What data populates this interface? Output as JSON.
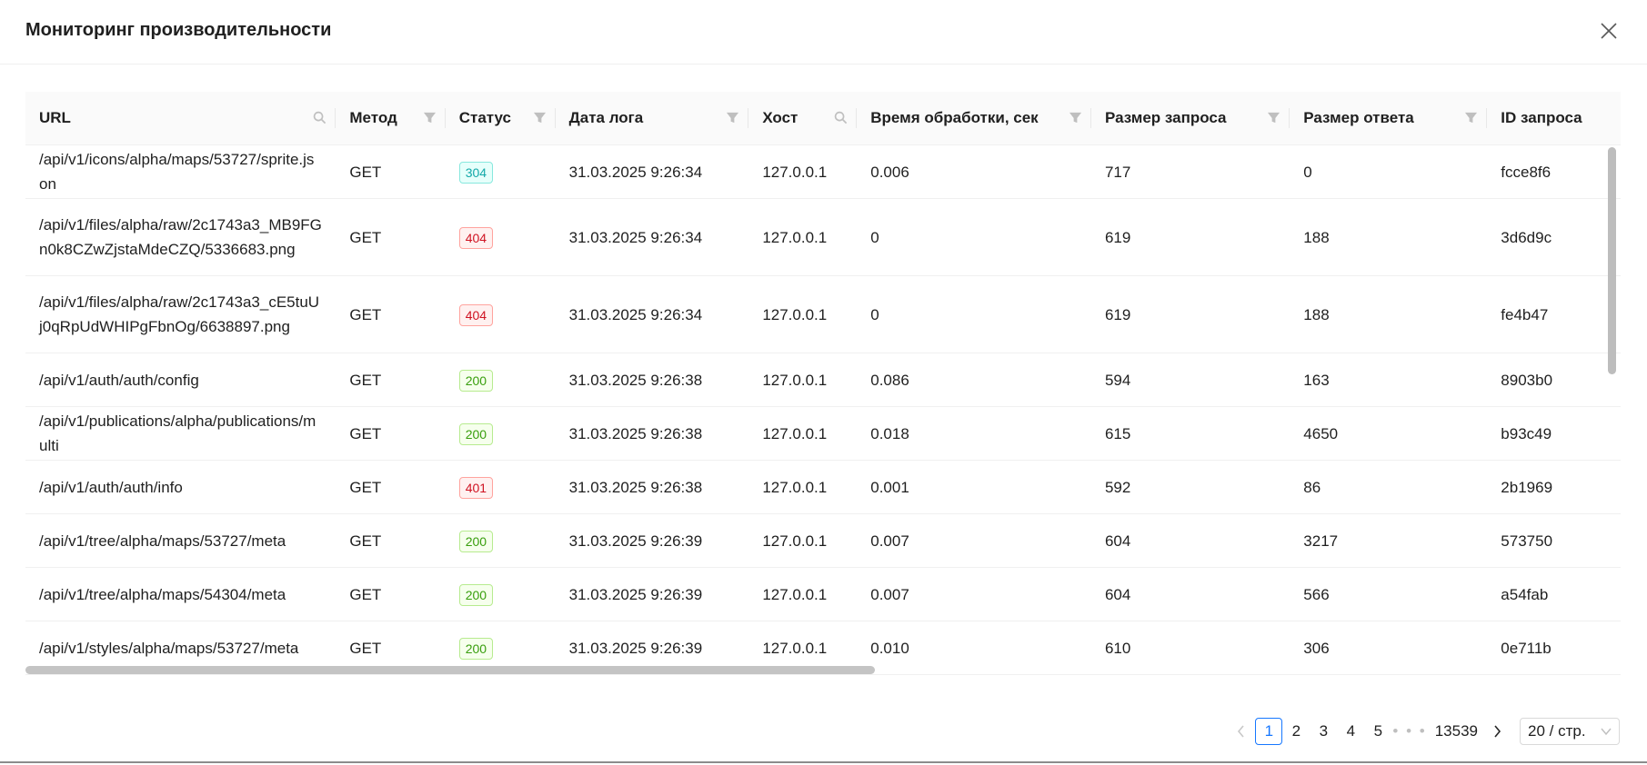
{
  "modal": {
    "title": "Мониторинг производительности"
  },
  "table": {
    "columns": [
      {
        "label": "URL",
        "icon": "search-icon"
      },
      {
        "label": "Метод",
        "icon": "filter-icon"
      },
      {
        "label": "Статус",
        "icon": "filter-icon"
      },
      {
        "label": "Дата лога",
        "icon": "filter-icon"
      },
      {
        "label": "Хост",
        "icon": "search-icon"
      },
      {
        "label": "Время обработки, сек",
        "icon": "filter-icon"
      },
      {
        "label": "Размер запроса",
        "icon": "filter-icon"
      },
      {
        "label": "Размер ответа",
        "icon": "filter-icon"
      },
      {
        "label": "ID запроса",
        "icon": ""
      }
    ],
    "rows": [
      {
        "url": "/api/v1/icons/alpha/maps/53727/sprite.json",
        "method": "GET",
        "status": "304",
        "date": "31.03.2025 9:26:34",
        "host": "127.0.0.1",
        "time": "0.006",
        "req_size": "717",
        "resp_size": "0",
        "id": "fcce8f6"
      },
      {
        "url": "/api/v1/files/alpha/raw/2c1743a3_MB9FGn0k8CZwZjstaMdeCZQ/5336683.png",
        "method": "GET",
        "status": "404",
        "date": "31.03.2025 9:26:34",
        "host": "127.0.0.1",
        "time": "0",
        "req_size": "619",
        "resp_size": "188",
        "id": "3d6d9c"
      },
      {
        "url": "/api/v1/files/alpha/raw/2c1743a3_cE5tuUj0qRpUdWHIPgFbnOg/6638897.png",
        "method": "GET",
        "status": "404",
        "date": "31.03.2025 9:26:34",
        "host": "127.0.0.1",
        "time": "0",
        "req_size": "619",
        "resp_size": "188",
        "id": "fe4b47"
      },
      {
        "url": "/api/v1/auth/auth/config",
        "method": "GET",
        "status": "200",
        "date": "31.03.2025 9:26:38",
        "host": "127.0.0.1",
        "time": "0.086",
        "req_size": "594",
        "resp_size": "163",
        "id": "8903b0"
      },
      {
        "url": "/api/v1/publications/alpha/publications/multi",
        "method": "GET",
        "status": "200",
        "date": "31.03.2025 9:26:38",
        "host": "127.0.0.1",
        "time": "0.018",
        "req_size": "615",
        "resp_size": "4650",
        "id": "b93c49"
      },
      {
        "url": "/api/v1/auth/auth/info",
        "method": "GET",
        "status": "401",
        "date": "31.03.2025 9:26:38",
        "host": "127.0.0.1",
        "time": "0.001",
        "req_size": "592",
        "resp_size": "86",
        "id": "2b1969"
      },
      {
        "url": "/api/v1/tree/alpha/maps/53727/meta",
        "method": "GET",
        "status": "200",
        "date": "31.03.2025 9:26:39",
        "host": "127.0.0.1",
        "time": "0.007",
        "req_size": "604",
        "resp_size": "3217",
        "id": "573750"
      },
      {
        "url": "/api/v1/tree/alpha/maps/54304/meta",
        "method": "GET",
        "status": "200",
        "date": "31.03.2025 9:26:39",
        "host": "127.0.0.1",
        "time": "0.007",
        "req_size": "604",
        "resp_size": "566",
        "id": "a54fab"
      },
      {
        "url": "/api/v1/styles/alpha/maps/53727/meta",
        "method": "GET",
        "status": "200",
        "date": "31.03.2025 9:26:39",
        "host": "127.0.0.1",
        "time": "0.010",
        "req_size": "610",
        "resp_size": "306",
        "id": "0e711b"
      }
    ]
  },
  "pagination": {
    "prev_icon": "chevron-left-icon",
    "pages": [
      "1",
      "2",
      "3",
      "4",
      "5"
    ],
    "active_page": "1",
    "jump": "• • •",
    "last_page": "13539",
    "next_icon": "chevron-right-icon",
    "page_size": "20 / стр."
  },
  "colors": {
    "accent": "#1677ff",
    "tag_200": "#389e0d",
    "tag_304": "#13a8a8",
    "tag_4xx": "#cf1322"
  }
}
